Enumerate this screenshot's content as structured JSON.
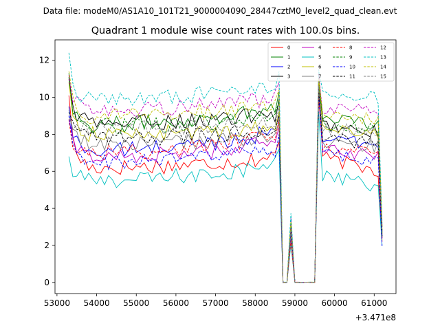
{
  "chart_data": {
    "type": "line",
    "suptitle": "Data file: modeM0/AS1A10_101T21_9000004090_28447cztM0_level2_quad_clean.evt",
    "title": "Quadrant 1 module wise count rates with 100.0s bins.",
    "xlabel": "",
    "ylabel": "",
    "x_offset_label": "+3.471e8",
    "xlim": [
      52950,
      61550
    ],
    "ylim": [
      -0.6,
      13.1
    ],
    "x_ticks": [
      53000,
      54000,
      55000,
      56000,
      57000,
      58000,
      59000,
      60000,
      61000
    ],
    "x_tick_labels": [
      "53000",
      "54000",
      "55000",
      "56000",
      "57000",
      "58000",
      "59000",
      "60000",
      "61000"
    ],
    "y_ticks": [
      0,
      2,
      4,
      6,
      8,
      10,
      12
    ],
    "y_tick_labels": [
      "0",
      "2",
      "4",
      "6",
      "8",
      "10",
      "12"
    ],
    "legend_position": "top-right",
    "x_start": 53300,
    "x_step": 100,
    "segments": [
      {
        "start": 53300,
        "end": 58600,
        "kind": "active"
      },
      {
        "start": 58700,
        "end": 58800,
        "kind": "zero"
      },
      {
        "start": 58900,
        "end": 58900,
        "kind": "spike"
      },
      {
        "start": 59000,
        "end": 59500,
        "kind": "zero"
      },
      {
        "start": 59600,
        "end": 61100,
        "kind": "active"
      },
      {
        "start": 61200,
        "end": 61200,
        "kind": "end"
      }
    ],
    "series": [
      {
        "name": "0",
        "color": "#ff0000",
        "dash": "solid",
        "start": 10.1,
        "base": 6.2,
        "base_late": 6.8,
        "peak": 11.0,
        "mid": 6.8,
        "tail": 6.0,
        "spike": 2.5,
        "end": 2.2
      },
      {
        "name": "1",
        "color": "#008000",
        "dash": "solid",
        "start": 11.3,
        "base": 8.5,
        "base_late": 9.5,
        "peak": 11.2,
        "mid": 9.0,
        "tail": 8.5,
        "spike": 3.0,
        "end": 3.0
      },
      {
        "name": "2",
        "color": "#0000ff",
        "dash": "solid",
        "start": 9.5,
        "base": 7.1,
        "base_late": 8.2,
        "peak": 10.5,
        "mid": 8.0,
        "tail": 7.3,
        "spike": 2.8,
        "end": 2.5
      },
      {
        "name": "3",
        "color": "#000000",
        "dash": "solid",
        "start": 11.0,
        "base": 8.6,
        "base_late": 9.1,
        "peak": 10.8,
        "mid": 8.6,
        "tail": 8.1,
        "spike": 3.0,
        "end": 2.7
      },
      {
        "name": "4",
        "color": "#c000c0",
        "dash": "solid",
        "start": 8.8,
        "base": 6.8,
        "base_late": 7.6,
        "peak": 10.0,
        "mid": 7.2,
        "tail": 6.8,
        "spike": 2.6,
        "end": 2.4
      },
      {
        "name": "5",
        "color": "#00c0c0",
        "dash": "solid",
        "start": 6.8,
        "base": 5.5,
        "base_late": 6.4,
        "peak": 9.2,
        "mid": 5.8,
        "tail": 5.2,
        "spike": 2.3,
        "end": 2.0
      },
      {
        "name": "6",
        "color": "#c0c000",
        "dash": "solid",
        "start": 10.8,
        "base": 8.0,
        "base_late": 8.4,
        "peak": 10.9,
        "mid": 8.3,
        "tail": 8.0,
        "spike": 2.9,
        "end": 2.6
      },
      {
        "name": "7",
        "color": "#808080",
        "dash": "solid",
        "start": 9.0,
        "base": 7.5,
        "base_late": 7.8,
        "peak": 10.3,
        "mid": 7.6,
        "tail": 7.3,
        "spike": 2.7,
        "end": 2.4
      },
      {
        "name": "8",
        "color": "#ff0000",
        "dash": "dashed",
        "start": 8.8,
        "base": 7.0,
        "base_late": 8.0,
        "peak": 10.0,
        "mid": 7.4,
        "tail": 7.0,
        "spike": 2.6,
        "end": 2.3
      },
      {
        "name": "9",
        "color": "#008000",
        "dash": "dashed",
        "start": 11.1,
        "base": 8.4,
        "base_late": 9.0,
        "peak": 10.7,
        "mid": 8.6,
        "tail": 8.2,
        "spike": 2.9,
        "end": 2.8
      },
      {
        "name": "10",
        "color": "#0000ff",
        "dash": "dashed",
        "start": 9.0,
        "base": 6.5,
        "base_late": 7.2,
        "peak": 10.2,
        "mid": 7.0,
        "tail": 6.4,
        "spike": 2.4,
        "end": 1.9
      },
      {
        "name": "11",
        "color": "#000000",
        "dash": "dashed",
        "start": 9.2,
        "base": 7.8,
        "base_late": 8.2,
        "peak": 10.4,
        "mid": 7.8,
        "tail": 7.5,
        "spike": 2.7,
        "end": 2.5
      },
      {
        "name": "12",
        "color": "#c000c0",
        "dash": "dashed",
        "start": 11.2,
        "base": 9.3,
        "base_late": 10.0,
        "peak": 11.3,
        "mid": 9.5,
        "tail": 9.2,
        "spike": 3.2,
        "end": 3.0
      },
      {
        "name": "13",
        "color": "#00c0c0",
        "dash": "dashed",
        "start": 12.4,
        "base": 9.9,
        "base_late": 10.6,
        "peak": 11.5,
        "mid": 10.2,
        "tail": 10.0,
        "spike": 3.5,
        "end": 3.2
      },
      {
        "name": "14",
        "color": "#c0c000",
        "dash": "dashed",
        "start": 11.4,
        "base": 9.0,
        "base_late": 9.6,
        "peak": 11.0,
        "mid": 9.2,
        "tail": 8.8,
        "spike": 3.1,
        "end": 2.9
      },
      {
        "name": "15",
        "color": "#808080",
        "dash": "dashed",
        "start": 9.3,
        "base": 8.3,
        "base_late": 8.7,
        "peak": 10.6,
        "mid": 8.4,
        "tail": 8.0,
        "spike": 2.8,
        "end": 2.6
      }
    ]
  }
}
